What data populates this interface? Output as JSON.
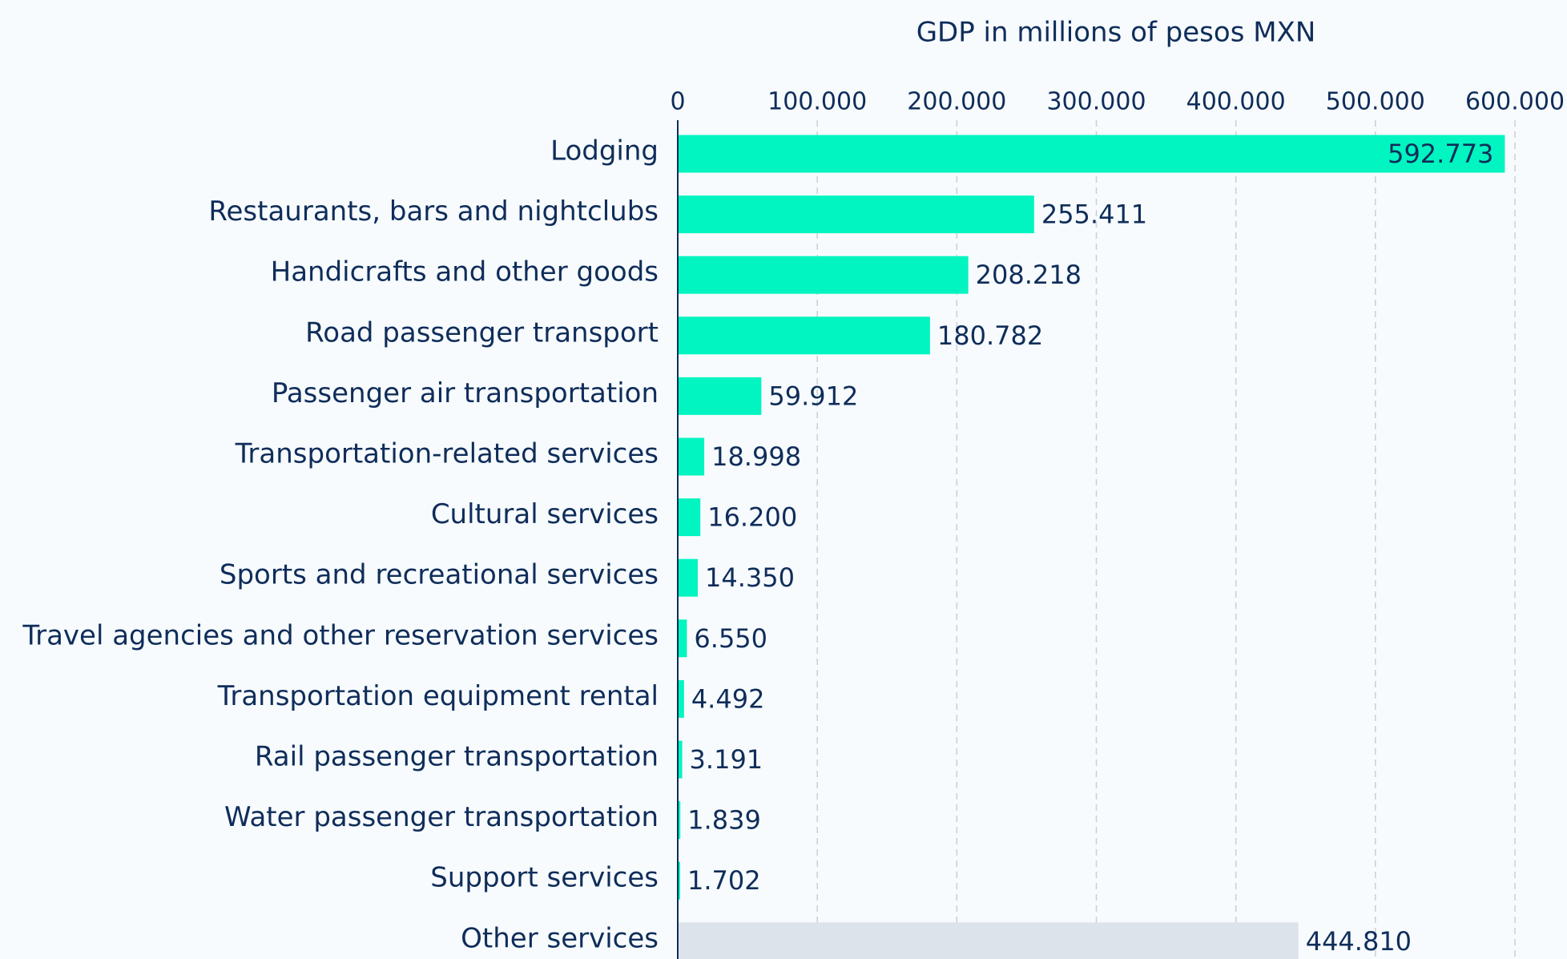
{
  "chart_data": {
    "type": "bar",
    "orientation": "horizontal",
    "title": "GDP in millions of pesos MXN",
    "categories": [
      "Lodging",
      "Restaurants, bars and nightclubs",
      "Handicrafts and other goods",
      "Road passenger transport",
      "Passenger air transportation",
      "Transportation-related services",
      "Cultural services",
      "Sports and recreational services",
      "Travel agencies and other reservation services",
      "Transportation equipment rental",
      "Rail passenger transportation",
      "Water passenger transportation",
      "Support services",
      "Other services"
    ],
    "values": [
      592773,
      255411,
      208218,
      180782,
      59912,
      18998,
      16200,
      14350,
      6550,
      4492,
      3191,
      1839,
      1702,
      444810
    ],
    "value_labels": [
      "592.773",
      "255.411",
      "208.218",
      "180.782",
      "59.912",
      "18.998",
      "16.200",
      "14.350",
      "6.550",
      "4.492",
      "3.191",
      "1.839",
      "1.702",
      "444.810"
    ],
    "colors": [
      "#00f5c0",
      "#00f5c0",
      "#00f5c0",
      "#00f5c0",
      "#00f5c0",
      "#00f5c0",
      "#00f5c0",
      "#00f5c0",
      "#00f5c0",
      "#00f5c0",
      "#00f5c0",
      "#00f5c0",
      "#00f5c0",
      "#dde3ea"
    ],
    "xlim": [
      0,
      600000
    ],
    "xticks": [
      0,
      {
        "value": 100000,
        "label": "100.000"
      },
      {
        "value": 200000,
        "label": "200.000"
      },
      {
        "value": 300000,
        "label": "300.000"
      },
      {
        "value": 400000,
        "label": "400.000"
      },
      {
        "value": 500000,
        "label": "500.000"
      },
      {
        "value": 600000,
        "label": "600.000"
      }
    ],
    "grid": true
  }
}
